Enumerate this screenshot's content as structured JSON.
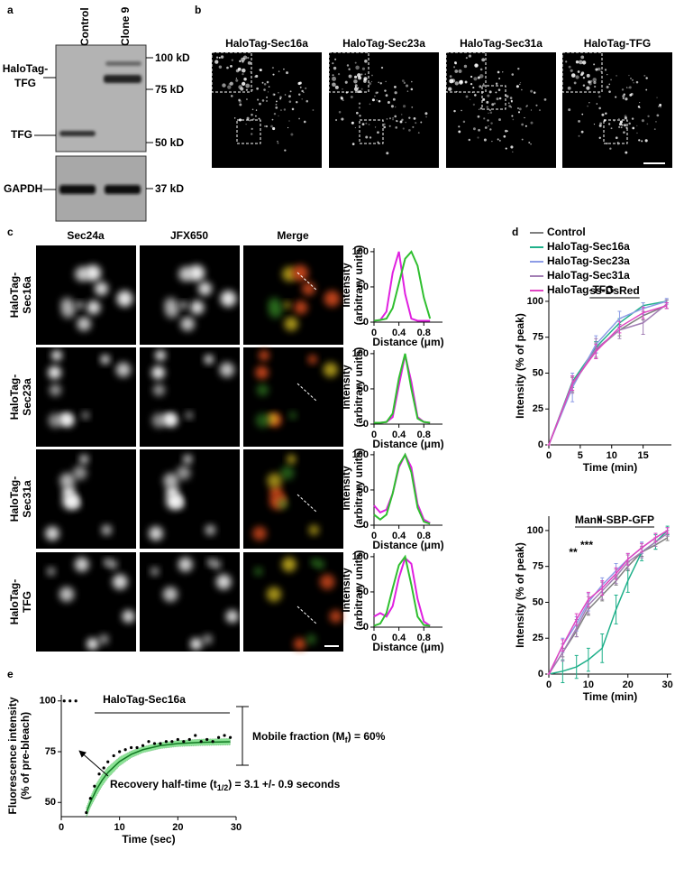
{
  "figure": {
    "panel_labels": [
      "a",
      "b",
      "c",
      "d",
      "e"
    ],
    "blot": {
      "lanes": [
        "Control",
        "Clone 9"
      ],
      "proteins": [
        [
          "HaloTag-",
          "TFG"
        ],
        [
          "TFG"
        ],
        [
          "GAPDH"
        ]
      ],
      "markers": [
        "100 kD",
        "75 kD",
        "50 kD",
        "37 kD"
      ]
    },
    "panel_b": [
      "HaloTag-Sec16a",
      "HaloTag-Sec23a",
      "HaloTag-Sec31a",
      "HaloTag-TFG"
    ],
    "panel_c": {
      "columns": [
        "Sec24a",
        "JFX650",
        "Merge"
      ],
      "rows": [
        [
          "HaloTag-",
          "Sec16a"
        ],
        [
          "HaloTag-",
          "Sec23a"
        ],
        [
          "HaloTag-",
          "Sec31a"
        ],
        [
          "HaloTag-",
          "TFG"
        ]
      ]
    }
  },
  "chart_data": [
    {
      "type": "line",
      "x": [
        0,
        0.1,
        0.2,
        0.3,
        0.4,
        0.5,
        0.6,
        0.7,
        0.8,
        0.9
      ],
      "series": [
        {
          "color": "#e020e0",
          "values": [
            2,
            3,
            15,
            70,
            100,
            40,
            5,
            2,
            2,
            2
          ]
        },
        {
          "color": "#2fbf2f",
          "values": [
            2,
            3,
            5,
            20,
            55,
            90,
            100,
            80,
            35,
            5
          ]
        }
      ],
      "xlim": [
        0,
        1.1
      ],
      "xticks": [
        0,
        0.4,
        0.8
      ],
      "ylim": [
        0,
        105
      ],
      "yticks": [
        0,
        50,
        100
      ],
      "xlabel": "Distance (μm)",
      "ylabel": [
        "Intensity",
        "(arbitrary units)"
      ]
    },
    {
      "type": "line",
      "x": [
        0,
        0.1,
        0.2,
        0.3,
        0.4,
        0.5,
        0.6,
        0.7,
        0.8,
        0.9
      ],
      "series": [
        {
          "color": "#e020e0",
          "values": [
            2,
            2,
            3,
            10,
            55,
            98,
            60,
            10,
            3,
            2
          ]
        },
        {
          "color": "#2fbf2f",
          "values": [
            2,
            2,
            3,
            15,
            65,
            100,
            50,
            8,
            3,
            2
          ]
        }
      ],
      "xlim": [
        0,
        1.1
      ],
      "xticks": [
        0,
        0.4,
        0.8
      ],
      "ylim": [
        0,
        105
      ],
      "yticks": [
        0,
        50,
        100
      ],
      "xlabel": "Distance (μm)",
      "ylabel": [
        "Intensity",
        "(arbitrary units)"
      ]
    },
    {
      "type": "line",
      "x": [
        0,
        0.1,
        0.2,
        0.3,
        0.4,
        0.5,
        0.6,
        0.7,
        0.8,
        0.9
      ],
      "series": [
        {
          "color": "#e020e0",
          "values": [
            28,
            18,
            22,
            45,
            82,
            100,
            82,
            30,
            8,
            3
          ]
        },
        {
          "color": "#2fbf2f",
          "values": [
            15,
            8,
            15,
            45,
            85,
            100,
            75,
            25,
            5,
            2
          ]
        }
      ],
      "xlim": [
        0,
        1.1
      ],
      "xticks": [
        0,
        0.4,
        0.8
      ],
      "ylim": [
        0,
        105
      ],
      "yticks": [
        0,
        50,
        100
      ],
      "xlabel": "Distance (μm)",
      "ylabel": [
        "Intensity",
        "(arbitrary units)"
      ]
    },
    {
      "type": "line",
      "x": [
        0,
        0.1,
        0.2,
        0.3,
        0.4,
        0.5,
        0.6,
        0.7,
        0.8,
        0.9
      ],
      "series": [
        {
          "color": "#e020e0",
          "values": [
            15,
            20,
            15,
            30,
            70,
            98,
            90,
            40,
            8,
            2
          ]
        },
        {
          "color": "#2fbf2f",
          "values": [
            2,
            5,
            20,
            55,
            88,
            100,
            60,
            15,
            3,
            2
          ]
        }
      ],
      "xlim": [
        0,
        1.1
      ],
      "xticks": [
        0,
        0.4,
        0.8
      ],
      "ylim": [
        0,
        105
      ],
      "yticks": [
        0,
        50,
        100
      ],
      "xlabel": "Distance (μm)",
      "ylabel": [
        "Intensity",
        "(arbitrary units)"
      ]
    },
    {
      "type": "line",
      "title": "ss-DsRed",
      "x": [
        0,
        3.75,
        7.5,
        11.25,
        15,
        18.75
      ],
      "series": [
        {
          "name": "Control",
          "color": "#7f7f7f",
          "values": [
            0,
            42,
            66,
            80,
            90,
            97
          ],
          "errors": [
            0,
            5,
            5,
            4,
            3,
            2
          ]
        },
        {
          "name": "HaloTag-Sec16a",
          "color": "#1fb08a",
          "values": [
            0,
            44,
            68,
            85,
            97,
            100
          ],
          "errors": [
            0,
            4,
            4,
            3,
            2,
            1
          ]
        },
        {
          "name": "HaloTag-Sec23a",
          "color": "#8d9ce6",
          "values": [
            0,
            40,
            70,
            88,
            95,
            100
          ],
          "errors": [
            0,
            10,
            6,
            5,
            4,
            2
          ]
        },
        {
          "name": "HaloTag-Sec31a",
          "color": "#a27eb4",
          "values": [
            0,
            42,
            67,
            80,
            85,
            98
          ],
          "errors": [
            0,
            6,
            7,
            6,
            8,
            3
          ]
        },
        {
          "name": "HaloTag-TFG",
          "color": "#e045c2",
          "values": [
            0,
            43,
            65,
            82,
            92,
            97
          ],
          "errors": [
            0,
            5,
            5,
            4,
            4,
            2
          ]
        }
      ],
      "xlim": [
        0,
        19.5
      ],
      "xticks": [
        0,
        5,
        10,
        15
      ],
      "ylim": [
        0,
        110
      ],
      "yticks": [
        0,
        25,
        50,
        75,
        100
      ],
      "xlabel": "Time (min)",
      "ylabel": "Intensity (% of peak)",
      "legend": "above"
    },
    {
      "type": "line",
      "title": "ManII-SBP-GFP",
      "x": [
        0,
        3.5,
        7,
        10,
        13.5,
        17,
        20,
        23.5,
        27,
        30
      ],
      "series": [
        {
          "color": "#7f7f7f",
          "values": [
            0,
            15,
            30,
            45,
            55,
            65,
            75,
            85,
            90,
            95
          ],
          "errors": [
            0,
            3,
            4,
            4,
            4,
            3,
            3,
            3,
            3,
            2
          ]
        },
        {
          "color": "#1fb08a",
          "values": [
            0,
            2,
            5,
            10,
            18,
            45,
            65,
            85,
            92,
            100
          ],
          "errors": [
            0,
            8,
            8,
            8,
            10,
            10,
            8,
            6,
            5,
            3
          ]
        },
        {
          "color": "#8d9ce6",
          "values": [
            0,
            20,
            35,
            50,
            62,
            72,
            80,
            88,
            95,
            100
          ],
          "errors": [
            0,
            5,
            5,
            6,
            5,
            5,
            4,
            4,
            3,
            2
          ]
        },
        {
          "color": "#a27eb4",
          "values": [
            0,
            15,
            32,
            48,
            58,
            68,
            78,
            85,
            92,
            98
          ],
          "errors": [
            0,
            6,
            6,
            6,
            6,
            5,
            5,
            4,
            3,
            2
          ]
        },
        {
          "color": "#e045c2",
          "values": [
            0,
            20,
            38,
            52,
            60,
            70,
            80,
            88,
            95,
            100
          ],
          "errors": [
            0,
            4,
            4,
            5,
            5,
            4,
            4,
            3,
            3,
            2
          ]
        }
      ],
      "xlim": [
        0,
        31
      ],
      "xticks": [
        0,
        10,
        20,
        30
      ],
      "ylim": [
        0,
        110
      ],
      "yticks": [
        0,
        25,
        50,
        75,
        100
      ],
      "xlabel": "Time (min)",
      "ylabel": "Intensity (% of peak)",
      "annotations": [
        "**",
        "***",
        "*"
      ]
    },
    {
      "type": "scatter",
      "title": "HaloTag-Sec16a",
      "x": [
        0.5,
        1.5,
        2.5,
        4.3,
        5,
        5.7,
        6.5,
        7.3,
        8,
        9,
        10,
        11,
        12,
        13,
        14,
        15,
        16,
        17,
        18,
        19,
        20,
        21,
        22,
        23,
        24,
        25,
        26,
        27,
        28,
        29
      ],
      "values": [
        100,
        100,
        100,
        45,
        52,
        58,
        64,
        67,
        70,
        73,
        75,
        76,
        77,
        77,
        78,
        80,
        79,
        79,
        80,
        80,
        81,
        80,
        81,
        83,
        80,
        81,
        80,
        82,
        83,
        82
      ],
      "color": "#000000",
      "fit": {
        "color": "#2ecc40",
        "x": [
          4.3,
          5,
          6,
          7,
          8,
          10,
          12,
          14,
          17,
          20,
          24,
          29
        ],
        "values": [
          45,
          50.1,
          56.1,
          60.9,
          64.7,
          70.2,
          73.7,
          76,
          78,
          79,
          79.6,
          79.9
        ],
        "lower": [
          42.5,
          47.5,
          53,
          58,
          62,
          68,
          72,
          74.5,
          76.5,
          77.5,
          78,
          78.3
        ],
        "upper": [
          47.5,
          52.7,
          59.2,
          63.8,
          67.4,
          72.4,
          75.4,
          77.5,
          79.5,
          80.5,
          81.2,
          81.5
        ]
      },
      "xlim": [
        0,
        30
      ],
      "xticks": [
        0,
        10,
        20,
        30
      ],
      "ylim": [
        43,
        103
      ],
      "yticks": [
        50,
        75,
        100
      ],
      "xlabel": "Time (sec)",
      "ylabel": [
        "Fluorescence intensity",
        "(% of pre-bleach)"
      ],
      "annotations": [
        [
          "Mobile fraction (M",
          "f",
          ") = 60%"
        ],
        [
          "Recovery half-time (t",
          "1/2",
          ") = 3.1 +/- 0.9 seconds"
        ]
      ]
    }
  ]
}
